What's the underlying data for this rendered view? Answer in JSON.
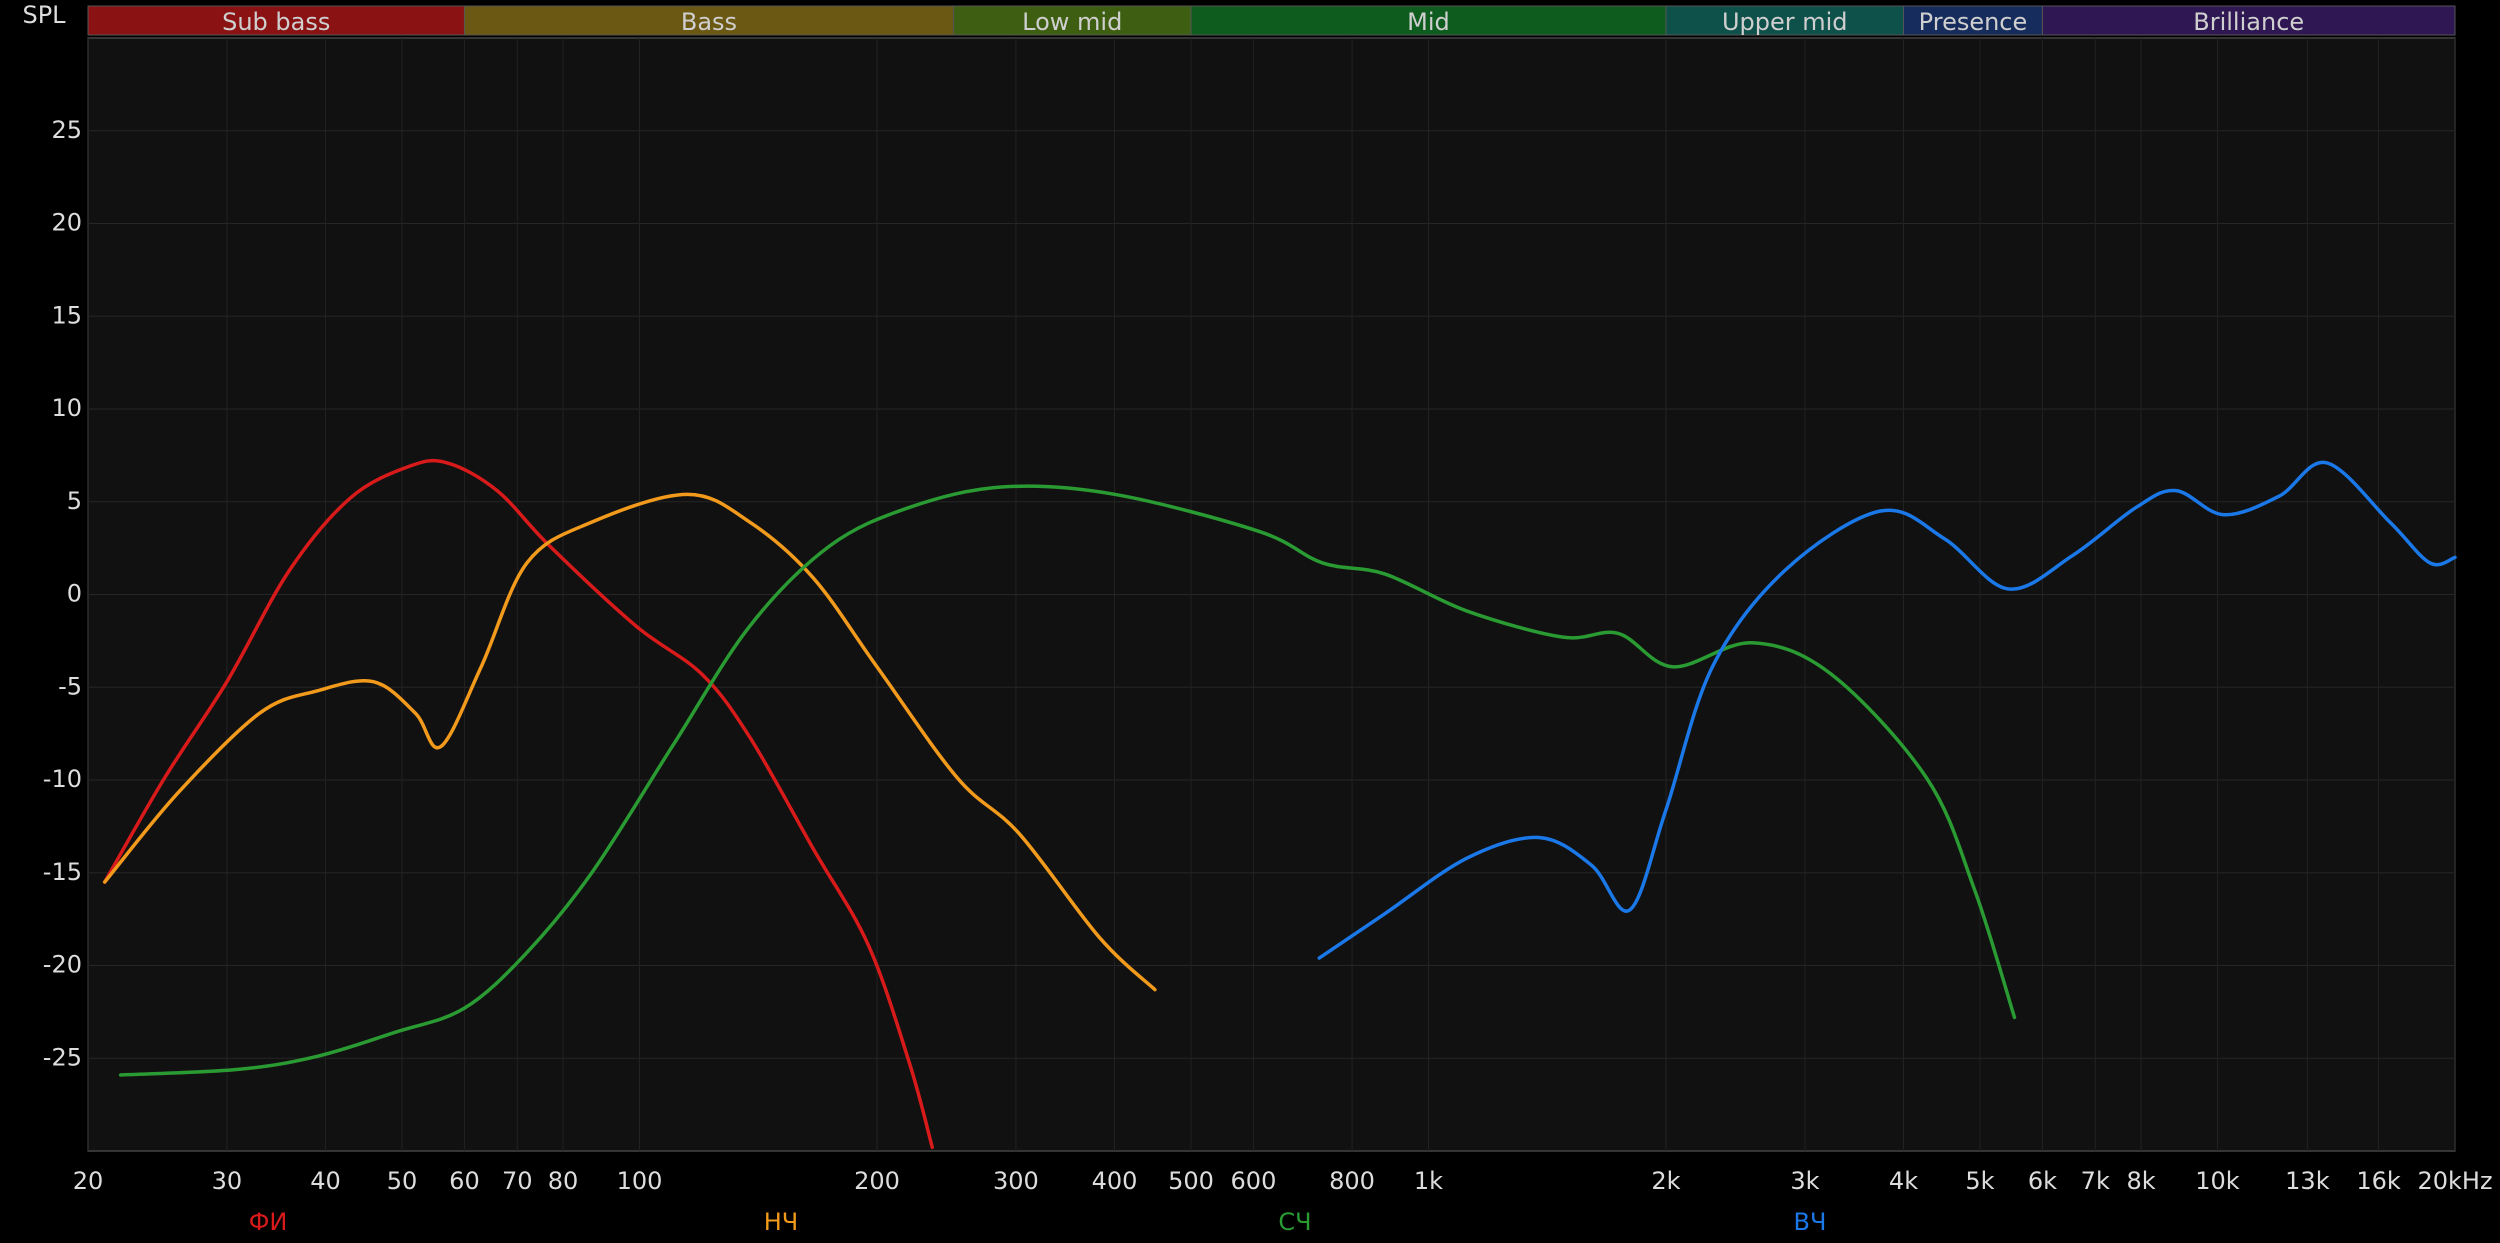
{
  "chart_data": {
    "type": "line",
    "ylabel": "SPL",
    "xscale": "log",
    "grid": true,
    "xlim": [
      20,
      20000
    ],
    "ylim": [
      -30,
      30
    ],
    "yticks": [
      -25,
      -20,
      -15,
      -10,
      -5,
      0,
      5,
      10,
      15,
      20,
      25
    ],
    "xticks": [
      20,
      30,
      40,
      50,
      60,
      70,
      80,
      100,
      200,
      300,
      400,
      500,
      600,
      800,
      {
        "value": 1000,
        "label": "1k"
      },
      {
        "value": 2000,
        "label": "2k"
      },
      {
        "value": 3000,
        "label": "3k"
      },
      {
        "value": 4000,
        "label": "4k"
      },
      {
        "value": 5000,
        "label": "5k"
      },
      {
        "value": 6000,
        "label": "6k"
      },
      {
        "value": 7000,
        "label": "7k"
      },
      {
        "value": 8000,
        "label": "8k"
      },
      {
        "value": 10000,
        "label": "10k"
      },
      {
        "value": 13000,
        "label": "13k"
      },
      {
        "value": 16000,
        "label": "16k"
      },
      {
        "value": 20000,
        "label": "20kHz"
      }
    ],
    "bands": [
      {
        "name": "Sub bass",
        "from": 20,
        "to": 60,
        "color": "#8a1212"
      },
      {
        "name": "Bass",
        "from": 60,
        "to": 250,
        "color": "#6b5812"
      },
      {
        "name": "Low mid",
        "from": 250,
        "to": 500,
        "color": "#3e5f12"
      },
      {
        "name": "Mid",
        "from": 500,
        "to": 2000,
        "color": "#0f5c1f"
      },
      {
        "name": "Upper mid",
        "from": 2000,
        "to": 4000,
        "color": "#0e504a"
      },
      {
        "name": "Presence",
        "from": 4000,
        "to": 6000,
        "color": "#162c5c"
      },
      {
        "name": "Brilliance",
        "from": 6000,
        "to": 20000,
        "color": "#2e1752"
      }
    ],
    "series": [
      {
        "name": "ФИ",
        "color": "#d81a1a",
        "x": [
          21,
          25,
          30,
          36,
          43,
          51,
          57,
          66,
          77,
          99,
          120,
          138,
          166,
          195,
          220,
          235
        ],
        "values": [
          -15.5,
          -9.9,
          -4.7,
          1.3,
          5.2,
          6.9,
          7.1,
          5.6,
          2.6,
          -1.7,
          -4.3,
          -7.7,
          -13.7,
          -18.9,
          -25.3,
          -29.8
        ]
      },
      {
        "name": "НЧ",
        "color": "#f29a1c",
        "x": [
          21,
          26,
          33,
          39,
          46,
          52,
          56,
          63,
          72,
          87,
          115,
          138,
          166,
          200,
          253,
          303,
          383,
          450
        ],
        "values": [
          -15.5,
          -10.7,
          -6.4,
          -5.2,
          -4.7,
          -6.4,
          -8.2,
          -3.9,
          1.7,
          3.9,
          5.4,
          3.9,
          0.9,
          -3.9,
          -9.9,
          -12.9,
          -18.5,
          -21.3
        ]
      },
      {
        "name": "СЧ",
        "color": "#2a9a32",
        "x": [
          22,
          31,
          39,
          49,
          60,
          72,
          87,
          110,
          138,
          174,
          220,
          289,
          400,
          610,
          734,
          881,
          1120,
          1480,
          1740,
          2040,
          2570,
          3240,
          4280,
          4920,
          5530
        ],
        "values": [
          -25.9,
          -25.6,
          -24.9,
          -23.6,
          -22.3,
          -19.3,
          -15.0,
          -8.2,
          -1.7,
          2.6,
          4.7,
          5.8,
          5.4,
          3.4,
          1.7,
          1.1,
          -0.9,
          -2.3,
          -2.1,
          -3.9,
          -2.6,
          -4.3,
          -9.9,
          -15.9,
          -22.8
        ]
      },
      {
        "name": "ВЧ",
        "color": "#1a78e8",
        "x": [
          727,
          881,
          1120,
          1380,
          1610,
          1800,
          2000,
          2290,
          2830,
          3740,
          4510,
          5430,
          6550,
          7890,
          8860,
          10180,
          11970,
          13750,
          16540,
          18590,
          20000
        ],
        "values": [
          -19.6,
          -17.2,
          -14.2,
          -13.1,
          -14.6,
          -17.0,
          -11.6,
          -3.9,
          1.3,
          4.5,
          3.0,
          0.3,
          2.1,
          4.7,
          5.6,
          4.3,
          5.3,
          7.1,
          3.9,
          1.7,
          2.0
        ]
      }
    ]
  }
}
